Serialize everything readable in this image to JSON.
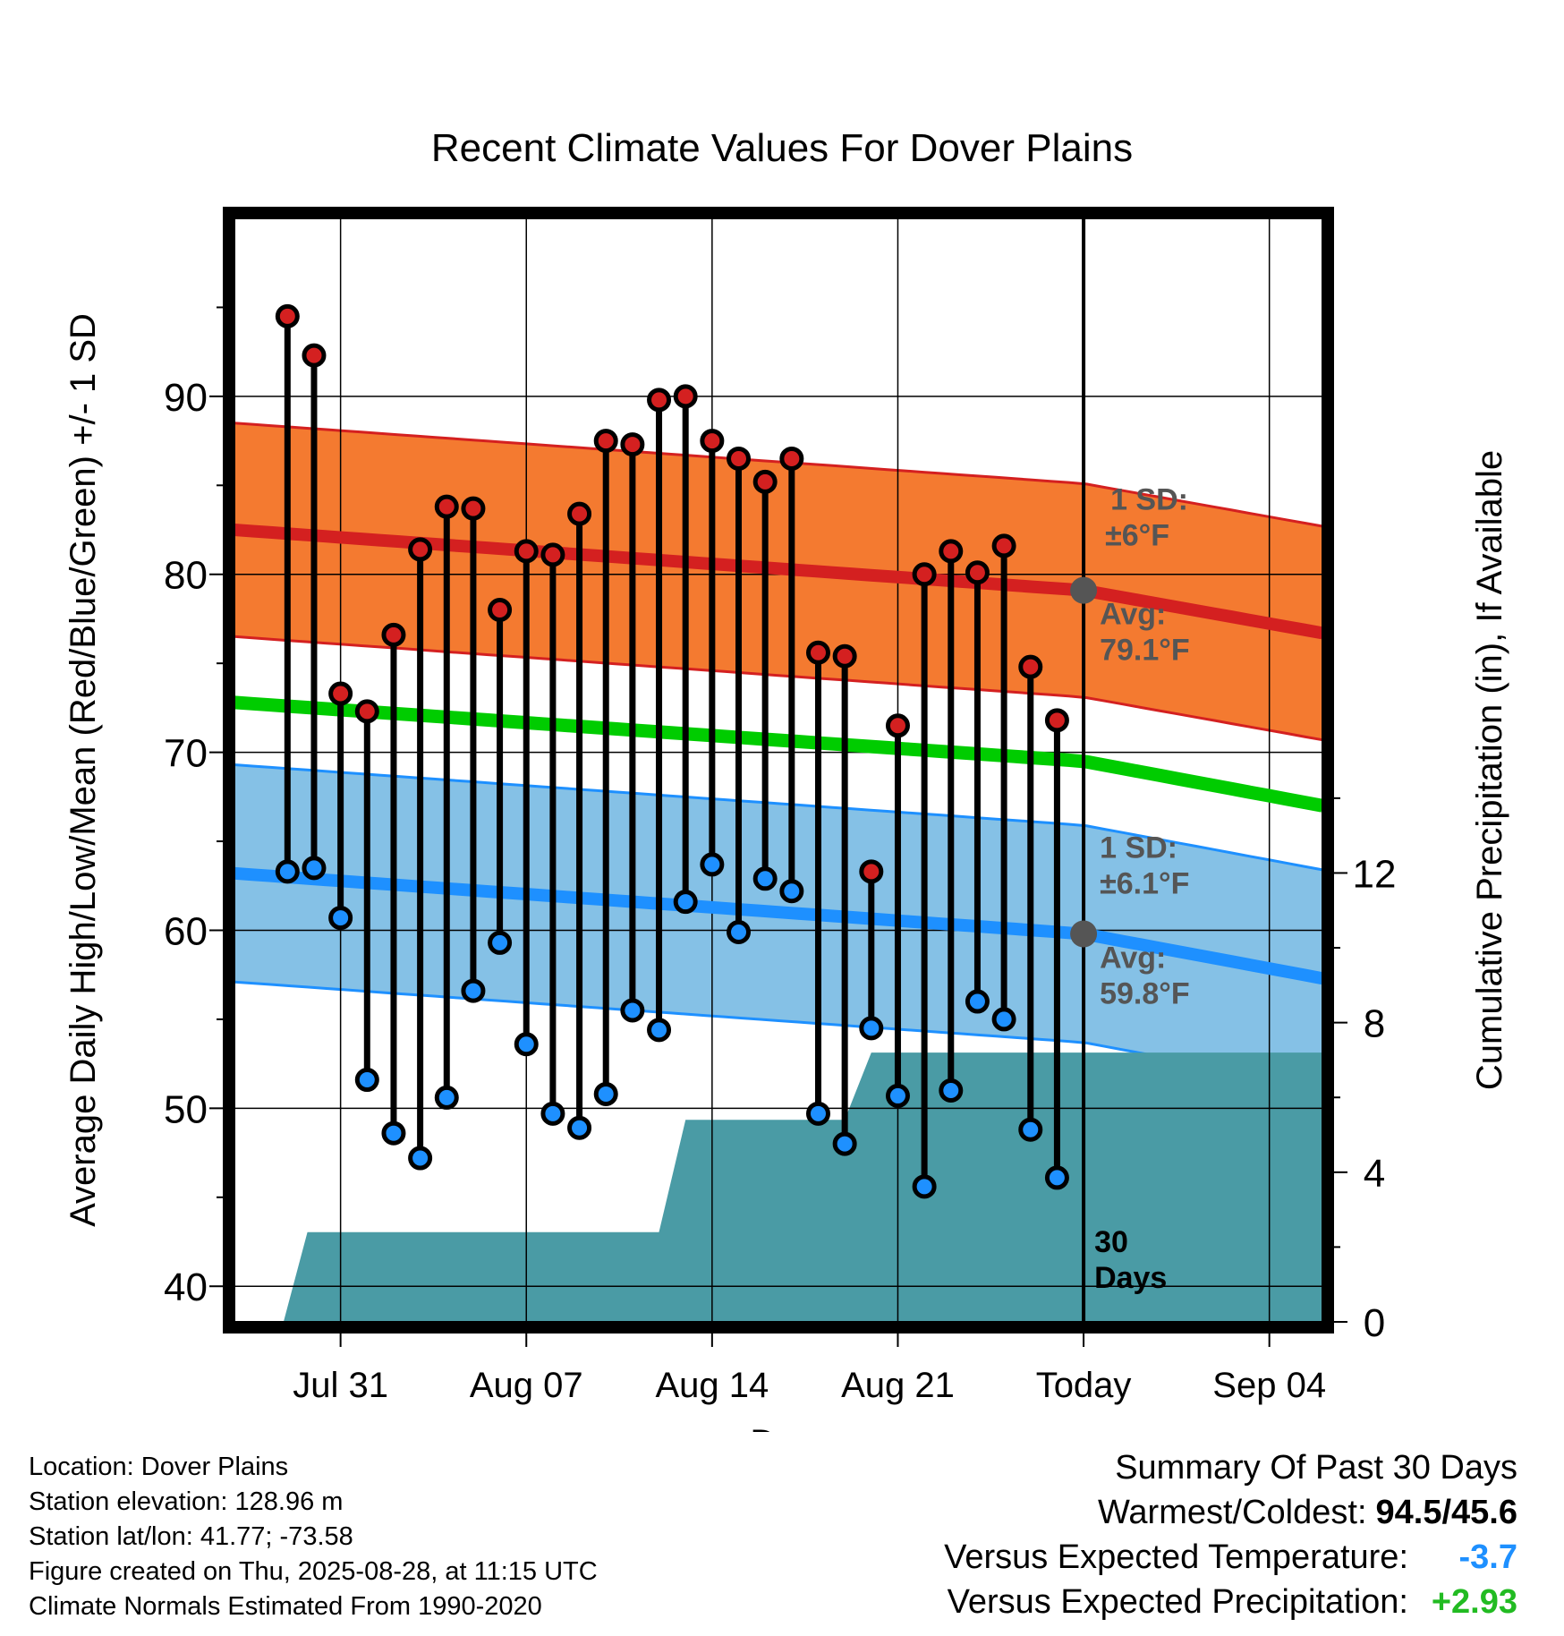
{
  "chart_data": {
    "type": "line",
    "title": "Recent Climate Values For Dover Plains",
    "xlabel": "Day",
    "ylabel": "Average Daily High/Low/Mean (Red/Blue/Green) +/- 1 SD",
    "y2label": "Cumulative Precipitation (in), If Available",
    "ylim": [
      38,
      100
    ],
    "y2lim": [
      0,
      29.5
    ],
    "yticks": [
      40,
      50,
      60,
      70,
      80,
      90
    ],
    "y2ticks": [
      0,
      4,
      8,
      12
    ],
    "xlim": [
      "2025-07-27",
      "2025-09-06"
    ],
    "xticks": [
      {
        "date": "2025-07-31",
        "label": "Jul 31"
      },
      {
        "date": "2025-08-07",
        "label": "Aug 07"
      },
      {
        "date": "2025-08-14",
        "label": "Aug 14"
      },
      {
        "date": "2025-08-21",
        "label": "Aug 21"
      },
      {
        "date": "2025-08-28",
        "label": "Today"
      },
      {
        "date": "2025-09-04",
        "label": "Sep 04"
      }
    ],
    "grid": true,
    "colors": {
      "high_band": "#f47a30",
      "high_line": "#d42020",
      "high_band_edge": "#d42020",
      "low_band": "#85c1e6",
      "low_line": "#1e90ff",
      "low_band_edge": "#1e90ff",
      "mean_line": "#00cc00",
      "precip": "#4a9ba5",
      "marker_high": "#d42020",
      "marker_low": "#1e90ff",
      "avg_dot": "#555555",
      "annotation": "#555555"
    },
    "normal_high": {
      "dates": [
        "2025-07-27",
        "2025-08-28",
        "2025-09-06"
      ],
      "values": [
        82.5,
        79.1,
        76.7
      ],
      "sd": 6
    },
    "normal_low": {
      "dates": [
        "2025-07-27",
        "2025-08-28",
        "2025-09-06"
      ],
      "values": [
        63.2,
        59.8,
        57.3
      ],
      "sd": 6.1
    },
    "normal_mean": {
      "dates": [
        "2025-07-27",
        "2025-08-28",
        "2025-09-06"
      ],
      "values": [
        72.8,
        69.5,
        67.0
      ]
    },
    "daily": {
      "dates": [
        "2025-07-29",
        "2025-07-30",
        "2025-07-31",
        "2025-08-01",
        "2025-08-02",
        "2025-08-03",
        "2025-08-04",
        "2025-08-05",
        "2025-08-06",
        "2025-08-07",
        "2025-08-08",
        "2025-08-09",
        "2025-08-10",
        "2025-08-11",
        "2025-08-12",
        "2025-08-13",
        "2025-08-14",
        "2025-08-15",
        "2025-08-16",
        "2025-08-17",
        "2025-08-18",
        "2025-08-19",
        "2025-08-20",
        "2025-08-21",
        "2025-08-22",
        "2025-08-23",
        "2025-08-24",
        "2025-08-25",
        "2025-08-26",
        "2025-08-27"
      ],
      "high": [
        94.5,
        92.3,
        73.3,
        72.3,
        76.6,
        81.4,
        83.8,
        83.7,
        78.0,
        81.3,
        81.1,
        83.4,
        87.5,
        87.3,
        89.8,
        90.0,
        87.5,
        86.5,
        85.2,
        86.5,
        75.6,
        75.4,
        63.3,
        71.5,
        80.0,
        81.3,
        80.1,
        81.6,
        74.8,
        71.8
      ],
      "low": [
        63.3,
        63.5,
        60.7,
        51.6,
        48.6,
        47.2,
        50.6,
        56.6,
        59.3,
        53.6,
        49.7,
        48.9,
        50.8,
        55.5,
        54.4,
        61.6,
        63.7,
        59.9,
        62.9,
        62.2,
        49.7,
        48.0,
        54.5,
        50.7,
        45.6,
        51.0,
        56.0,
        55.0,
        48.8,
        46.1
      ]
    },
    "precipitation": {
      "x": [
        "2025-07-28.85",
        "2025-07-29.75",
        "2025-08-02",
        "2025-08-12",
        "2025-08-13",
        "2025-08-19",
        "2025-08-20",
        "2025-09-06"
      ],
      "y": [
        0,
        2.4,
        2.4,
        2.4,
        5.4,
        5.4,
        7.2,
        7.2
      ],
      "note": "cumulative"
    },
    "annotations": {
      "high_sd": [
        "1 SD:",
        "±6°F"
      ],
      "high_avg": [
        "Avg:",
        "79.1°F"
      ],
      "low_sd": [
        "1 SD:",
        "±6.1°F"
      ],
      "low_avg": [
        "Avg:",
        "59.8°F"
      ],
      "days": [
        "30",
        "Days"
      ]
    }
  },
  "station": {
    "location": "Location: Dover Plains",
    "elevation": "Station elevation: 128.96 m",
    "latlon": "Station lat/lon: 41.77; -73.58",
    "created": "Figure created on Thu, 2025-08-28, at 11:15 UTC",
    "normals": "Climate Normals Estimated From 1990-2020"
  },
  "summary": {
    "title": "Summary Of Past 30 Days",
    "warmest_label": "Warmest/Coldest:",
    "warmest_value": "94.5/45.6",
    "temp_label": "Versus Expected Temperature:",
    "temp_value": "-3.7",
    "temp_color": "#1e90ff",
    "precip_label": "Versus Expected Precipitation:",
    "precip_value": "+2.93",
    "precip_color": "#22bb22"
  }
}
